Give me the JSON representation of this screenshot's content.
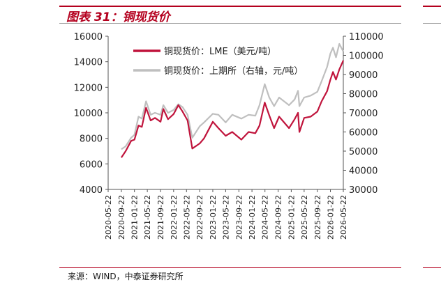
{
  "figure": {
    "title": "图表 31：铜现货价",
    "source": "来源：WIND，中泰证券研究所"
  },
  "colors": {
    "accent": "#b4001e",
    "lme_series": "#c0143c",
    "shfe_series": "#bfbfbf"
  },
  "chart_data": {
    "type": "line",
    "title": "",
    "xlabel": "",
    "ylabel": "",
    "x_ticks": [
      "2020-05-22",
      "2020-09-22",
      "2021-01-22",
      "2021-05-22",
      "2021-09-22",
      "2022-01-22",
      "2022-05-22",
      "2022-09-22",
      "2023-01-22",
      "2023-05-22",
      "2023-09-22",
      "2024-01-22",
      "2024-05-22",
      "2024-09-22",
      "2025-01-22",
      "2025-05-22",
      "2025-09-22",
      "2026-01-22",
      "2026-05-22"
    ],
    "y_left": {
      "min": 4000,
      "max": 16000,
      "ticks": [
        4000,
        6000,
        8000,
        10000,
        12000,
        14000,
        16000
      ]
    },
    "y_right": {
      "min": 30000,
      "max": 110000,
      "ticks": [
        30000,
        40000,
        50000,
        60000,
        70000,
        80000,
        90000,
        100000,
        110000
      ]
    },
    "legend_position": "top-left",
    "grid": false,
    "series": [
      {
        "name": "铜现货价：LME（美元/吨）",
        "axis": "left",
        "points": [
          [
            "2020-09-22",
            6500
          ],
          [
            "2020-11-01",
            7000
          ],
          [
            "2020-12-22",
            7800
          ],
          [
            "2021-01-22",
            7900
          ],
          [
            "2021-03-01",
            9000
          ],
          [
            "2021-04-01",
            8900
          ],
          [
            "2021-05-10",
            10400
          ],
          [
            "2021-06-22",
            9400
          ],
          [
            "2021-08-01",
            9600
          ],
          [
            "2021-09-22",
            9300
          ],
          [
            "2021-10-18",
            10300
          ],
          [
            "2021-12-01",
            9500
          ],
          [
            "2022-01-22",
            9900
          ],
          [
            "2022-03-07",
            10600
          ],
          [
            "2022-04-15",
            10100
          ],
          [
            "2022-06-01",
            9400
          ],
          [
            "2022-07-15",
            7200
          ],
          [
            "2022-09-22",
            7600
          ],
          [
            "2022-11-01",
            8000
          ],
          [
            "2023-01-22",
            9300
          ],
          [
            "2023-03-15",
            8800
          ],
          [
            "2023-05-22",
            8200
          ],
          [
            "2023-07-22",
            8500
          ],
          [
            "2023-10-15",
            7900
          ],
          [
            "2023-12-22",
            8500
          ],
          [
            "2024-02-22",
            8400
          ],
          [
            "2024-04-01",
            9000
          ],
          [
            "2024-05-20",
            10800
          ],
          [
            "2024-07-01",
            9800
          ],
          [
            "2024-08-15",
            8800
          ],
          [
            "2024-10-01",
            9700
          ],
          [
            "2025-01-01",
            8800
          ],
          [
            "2025-02-22",
            9500
          ],
          [
            "2025-03-26",
            10000
          ],
          [
            "2025-04-08",
            8500
          ],
          [
            "2025-05-22",
            9600
          ],
          [
            "2025-07-22",
            9700
          ],
          [
            "2025-09-22",
            10100
          ],
          [
            "2025-11-01",
            10900
          ],
          [
            "2025-12-22",
            11700
          ],
          [
            "2026-01-22",
            12600
          ],
          [
            "2026-02-15",
            13200
          ],
          [
            "2026-03-15",
            12600
          ],
          [
            "2026-04-15",
            13400
          ],
          [
            "2026-05-22",
            14100
          ]
        ]
      },
      {
        "name": "铜现货价：上期所（右轴，元/吨）",
        "axis": "right",
        "points": [
          [
            "2020-09-22",
            51000
          ],
          [
            "2020-11-01",
            52500
          ],
          [
            "2020-12-22",
            57000
          ],
          [
            "2021-01-22",
            58500
          ],
          [
            "2021-03-01",
            68000
          ],
          [
            "2021-04-01",
            67000
          ],
          [
            "2021-05-10",
            76000
          ],
          [
            "2021-06-22",
            69000
          ],
          [
            "2021-08-01",
            70000
          ],
          [
            "2021-09-22",
            69000
          ],
          [
            "2021-10-18",
            74000
          ],
          [
            "2021-12-01",
            70000
          ],
          [
            "2022-01-22",
            71500
          ],
          [
            "2022-03-07",
            74500
          ],
          [
            "2022-04-15",
            73000
          ],
          [
            "2022-06-01",
            69000
          ],
          [
            "2022-07-15",
            57000
          ],
          [
            "2022-09-22",
            63000
          ],
          [
            "2022-11-01",
            65000
          ],
          [
            "2023-01-22",
            69500
          ],
          [
            "2023-03-15",
            69000
          ],
          [
            "2023-05-22",
            65000
          ],
          [
            "2023-07-22",
            69000
          ],
          [
            "2023-10-15",
            67000
          ],
          [
            "2023-12-22",
            69000
          ],
          [
            "2024-02-22",
            68500
          ],
          [
            "2024-04-01",
            74000
          ],
          [
            "2024-05-20",
            85000
          ],
          [
            "2024-07-01",
            78000
          ],
          [
            "2024-08-15",
            73500
          ],
          [
            "2024-10-01",
            78000
          ],
          [
            "2025-01-01",
            74000
          ],
          [
            "2025-02-22",
            77000
          ],
          [
            "2025-03-26",
            81500
          ],
          [
            "2025-04-08",
            73500
          ],
          [
            "2025-05-22",
            78000
          ],
          [
            "2025-07-22",
            79000
          ],
          [
            "2025-09-22",
            81000
          ],
          [
            "2025-11-01",
            86500
          ],
          [
            "2025-12-22",
            94000
          ],
          [
            "2026-01-22",
            101000
          ],
          [
            "2026-02-15",
            104000
          ],
          [
            "2026-03-15",
            99000
          ],
          [
            "2026-04-15",
            106000
          ],
          [
            "2026-05-22",
            102000
          ]
        ]
      }
    ]
  }
}
